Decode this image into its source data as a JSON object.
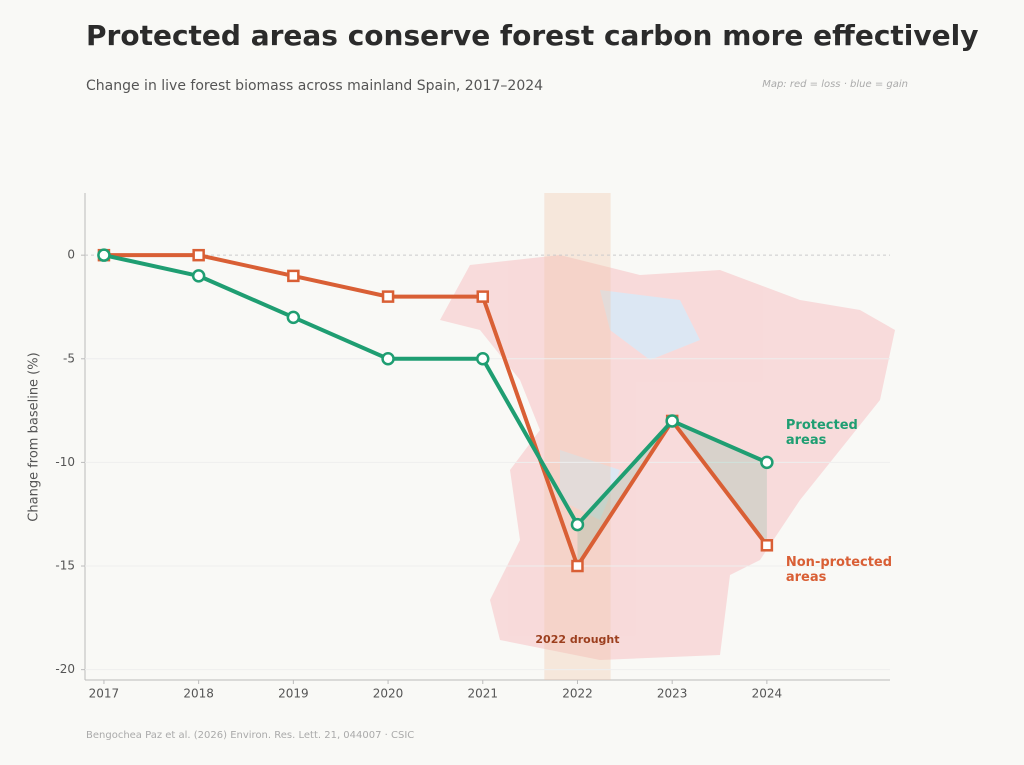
{
  "chart_data": {
    "type": "line",
    "title": "Protected areas conserve forest carbon more effectively",
    "subtitle": "Change in live forest biomass across mainland Spain, 2017–2024",
    "map_note": "Map: red = loss · blue = gain",
    "y_label": "Change from baseline (%)",
    "source": "Bengochea Paz et al. (2026) Environ. Res. Lett. 21, 044007  ·  CSIC",
    "x": [
      2017,
      2018,
      2019,
      2020,
      2021,
      2022,
      2023,
      2024
    ],
    "series": [
      {
        "name": "Protected areas",
        "color": "#1f9e72",
        "marker": "circle",
        "values": [
          0,
          -1,
          -3,
          -5,
          -5,
          -13,
          -8,
          -10
        ]
      },
      {
        "name": "Non-protected areas",
        "color": "#d95f35",
        "marker": "square",
        "values": [
          0,
          0,
          -1,
          -2,
          -2,
          -15,
          -8,
          -14
        ]
      }
    ],
    "annotations": [
      {
        "text": "2022 drought",
        "x": 2022
      }
    ],
    "xlim": [
      2016.8,
      2025.3
    ],
    "xticks": [
      2017,
      2018,
      2019,
      2020,
      2021,
      2022,
      2023,
      2024
    ],
    "ylim": [
      -20.5,
      3
    ],
    "yticks": [
      -20,
      -15,
      -10,
      -5,
      0
    ],
    "grid": true
  }
}
